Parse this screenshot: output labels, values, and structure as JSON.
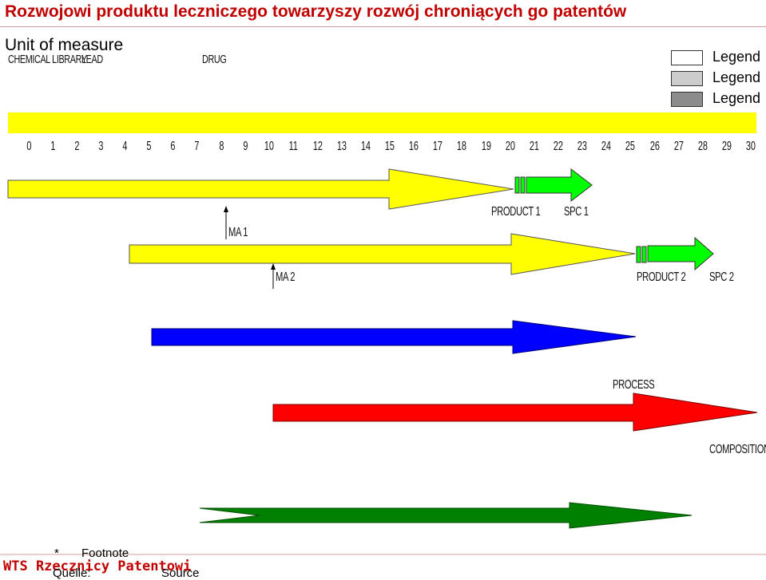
{
  "header": {
    "title": "Rozwojowi produktu leczniczego towarzyszy rozwój chroniących go patentów",
    "unit": "Unit of measure"
  },
  "stages": {
    "chemical_library": "CHEMICAL LIBRARY",
    "lead": "LEAD",
    "drug": "DRUG"
  },
  "legend": [
    {
      "label": "Legend",
      "color": "#ffffff"
    },
    {
      "label": "Legend",
      "color": "#cccccc"
    },
    {
      "label": "Legend",
      "color": "#8c8c8c"
    }
  ],
  "axis": {
    "ticks": [
      "0",
      "1",
      "2",
      "3",
      "4",
      "5",
      "6",
      "7",
      "8",
      "9",
      "10",
      "11",
      "12",
      "13",
      "14",
      "15",
      "16",
      "17",
      "18",
      "19",
      "20",
      "21",
      "22",
      "23",
      "24",
      "25",
      "26",
      "27",
      "28",
      "29",
      "30"
    ]
  },
  "labels": {
    "ma1": "MA 1",
    "ma2": "MA 2",
    "product1": "PRODUCT 1",
    "spc1": "SPC 1",
    "product2": "PRODUCT 2",
    "spc2": "SPC 2",
    "process": "PROCESS",
    "composition": "COMPOSITION"
  },
  "colors": {
    "yellow": "#ffff00",
    "green_spc": "#00ff00",
    "blue": "#0000ff",
    "red": "#ff0000",
    "dark_green": "#008000",
    "title": "#c00000"
  },
  "footer": {
    "footnote_marker": "*",
    "footnote_text": "Footnote",
    "brand": "WTS Rzecznicy Patentowi",
    "source_label": "Quelle:",
    "source_value": "Source"
  }
}
